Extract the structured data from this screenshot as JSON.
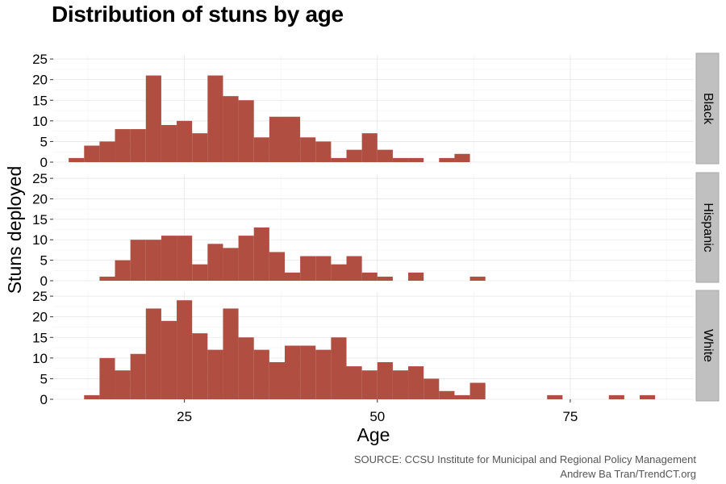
{
  "chart_data": {
    "type": "bar",
    "title": "Distribution of stuns by age",
    "xlabel": "Age",
    "ylabel": "Stuns deployed",
    "xlim": [
      8,
      91
    ],
    "ylim": [
      0,
      26
    ],
    "xticks": [
      25,
      50,
      75
    ],
    "yticks": [
      0,
      5,
      10,
      15,
      20,
      25
    ],
    "bin_width": 2,
    "bar_color": "#b04e42",
    "strip_fill": "#c0c0c0",
    "grid": true,
    "source": "SOURCE: CCSU Institute for Municipal and Regional Policy Management",
    "credit": "Andrew Ba Tran/TrendCT.org",
    "facets": [
      {
        "name": "Black",
        "bins": [
          {
            "x": 11,
            "y": 1
          },
          {
            "x": 13,
            "y": 4
          },
          {
            "x": 15,
            "y": 5
          },
          {
            "x": 17,
            "y": 8
          },
          {
            "x": 19,
            "y": 8
          },
          {
            "x": 21,
            "y": 21
          },
          {
            "x": 23,
            "y": 9
          },
          {
            "x": 25,
            "y": 10
          },
          {
            "x": 27,
            "y": 7
          },
          {
            "x": 29,
            "y": 21
          },
          {
            "x": 31,
            "y": 16
          },
          {
            "x": 33,
            "y": 15
          },
          {
            "x": 35,
            "y": 6
          },
          {
            "x": 37,
            "y": 11
          },
          {
            "x": 39,
            "y": 11
          },
          {
            "x": 41,
            "y": 6
          },
          {
            "x": 43,
            "y": 5
          },
          {
            "x": 45,
            "y": 1
          },
          {
            "x": 47,
            "y": 3
          },
          {
            "x": 49,
            "y": 7
          },
          {
            "x": 51,
            "y": 3
          },
          {
            "x": 53,
            "y": 1
          },
          {
            "x": 55,
            "y": 1
          },
          {
            "x": 59,
            "y": 1
          },
          {
            "x": 61,
            "y": 2
          }
        ]
      },
      {
        "name": "Hispanic",
        "bins": [
          {
            "x": 15,
            "y": 1
          },
          {
            "x": 17,
            "y": 5
          },
          {
            "x": 19,
            "y": 10
          },
          {
            "x": 21,
            "y": 10
          },
          {
            "x": 23,
            "y": 11
          },
          {
            "x": 25,
            "y": 11
          },
          {
            "x": 27,
            "y": 4
          },
          {
            "x": 29,
            "y": 9
          },
          {
            "x": 31,
            "y": 8
          },
          {
            "x": 33,
            "y": 11
          },
          {
            "x": 35,
            "y": 13
          },
          {
            "x": 37,
            "y": 7
          },
          {
            "x": 39,
            "y": 2
          },
          {
            "x": 41,
            "y": 6
          },
          {
            "x": 43,
            "y": 6
          },
          {
            "x": 45,
            "y": 4
          },
          {
            "x": 47,
            "y": 6
          },
          {
            "x": 49,
            "y": 2
          },
          {
            "x": 51,
            "y": 1
          },
          {
            "x": 55,
            "y": 2
          },
          {
            "x": 63,
            "y": 1
          }
        ]
      },
      {
        "name": "White",
        "bins": [
          {
            "x": 13,
            "y": 1
          },
          {
            "x": 15,
            "y": 10
          },
          {
            "x": 17,
            "y": 7
          },
          {
            "x": 19,
            "y": 11
          },
          {
            "x": 21,
            "y": 22
          },
          {
            "x": 23,
            "y": 19
          },
          {
            "x": 25,
            "y": 24
          },
          {
            "x": 27,
            "y": 16
          },
          {
            "x": 29,
            "y": 12
          },
          {
            "x": 31,
            "y": 22
          },
          {
            "x": 33,
            "y": 15
          },
          {
            "x": 35,
            "y": 12
          },
          {
            "x": 37,
            "y": 9
          },
          {
            "x": 39,
            "y": 13
          },
          {
            "x": 41,
            "y": 13
          },
          {
            "x": 43,
            "y": 12
          },
          {
            "x": 45,
            "y": 15
          },
          {
            "x": 47,
            "y": 8
          },
          {
            "x": 49,
            "y": 7
          },
          {
            "x": 51,
            "y": 9
          },
          {
            "x": 53,
            "y": 7
          },
          {
            "x": 55,
            "y": 8
          },
          {
            "x": 57,
            "y": 5
          },
          {
            "x": 59,
            "y": 2
          },
          {
            "x": 61,
            "y": 1
          },
          {
            "x": 63,
            "y": 4
          },
          {
            "x": 73,
            "y": 1
          },
          {
            "x": 81,
            "y": 1
          },
          {
            "x": 85,
            "y": 1
          }
        ]
      }
    ]
  }
}
